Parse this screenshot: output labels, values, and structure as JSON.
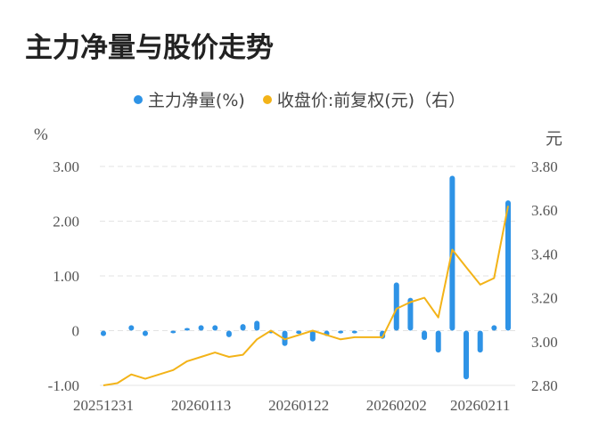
{
  "title": "主力净量与股价走势",
  "legend": [
    {
      "label": "主力净量(%)",
      "color": "#2e93e6"
    },
    {
      "label": "收盘价:前复权(元)（右）",
      "color": "#f3b318"
    }
  ],
  "axes": {
    "left_unit": "%",
    "right_unit": "元",
    "left_ticks": [
      "3.00",
      "2.00",
      "1.00",
      "0",
      "-1.00"
    ],
    "right_ticks": [
      "3.80",
      "3.60",
      "3.40",
      "3.20",
      "3.00",
      "2.80"
    ],
    "x_ticks": [
      "20251231",
      "20260113",
      "20260122",
      "20260202",
      "20260211"
    ]
  },
  "chart_data": {
    "type": "bar+line",
    "title": "主力净量与股价走势",
    "xlabel": "",
    "ylabel": "%",
    "y2label": "元",
    "ylim": [
      -1.0,
      3.0
    ],
    "y2lim": [
      2.8,
      3.8
    ],
    "grid": true,
    "legend_position": "top",
    "x_tick_labels": [
      "20251231",
      "20260113",
      "20260122",
      "20260202",
      "20260211"
    ],
    "x_tick_indices": [
      0,
      7,
      14,
      21,
      27
    ],
    "series": [
      {
        "name": "主力净量(%)",
        "type": "bar",
        "axis": "left",
        "color": "#2e93e6",
        "values": [
          -0.1,
          0.0,
          0.1,
          -0.1,
          0.0,
          -0.02,
          0.02,
          0.1,
          0.1,
          -0.12,
          0.12,
          0.18,
          -0.04,
          -0.28,
          -0.06,
          -0.2,
          -0.1,
          -0.05,
          -0.05,
          0.0,
          -0.15,
          0.88,
          0.6,
          -0.17,
          -0.4,
          2.83,
          -0.89,
          -0.4,
          0.1,
          2.38
        ]
      },
      {
        "name": "收盘价:前复权(元)（右）",
        "type": "line",
        "axis": "right",
        "color": "#f3b318",
        "values": [
          2.8,
          2.81,
          2.85,
          2.83,
          2.85,
          2.87,
          2.91,
          2.93,
          2.95,
          2.93,
          2.94,
          3.01,
          3.05,
          3.01,
          3.03,
          3.05,
          3.03,
          3.01,
          3.02,
          3.02,
          3.02,
          3.15,
          3.18,
          3.2,
          3.11,
          3.42,
          3.34,
          3.26,
          3.29,
          3.62
        ]
      }
    ]
  }
}
